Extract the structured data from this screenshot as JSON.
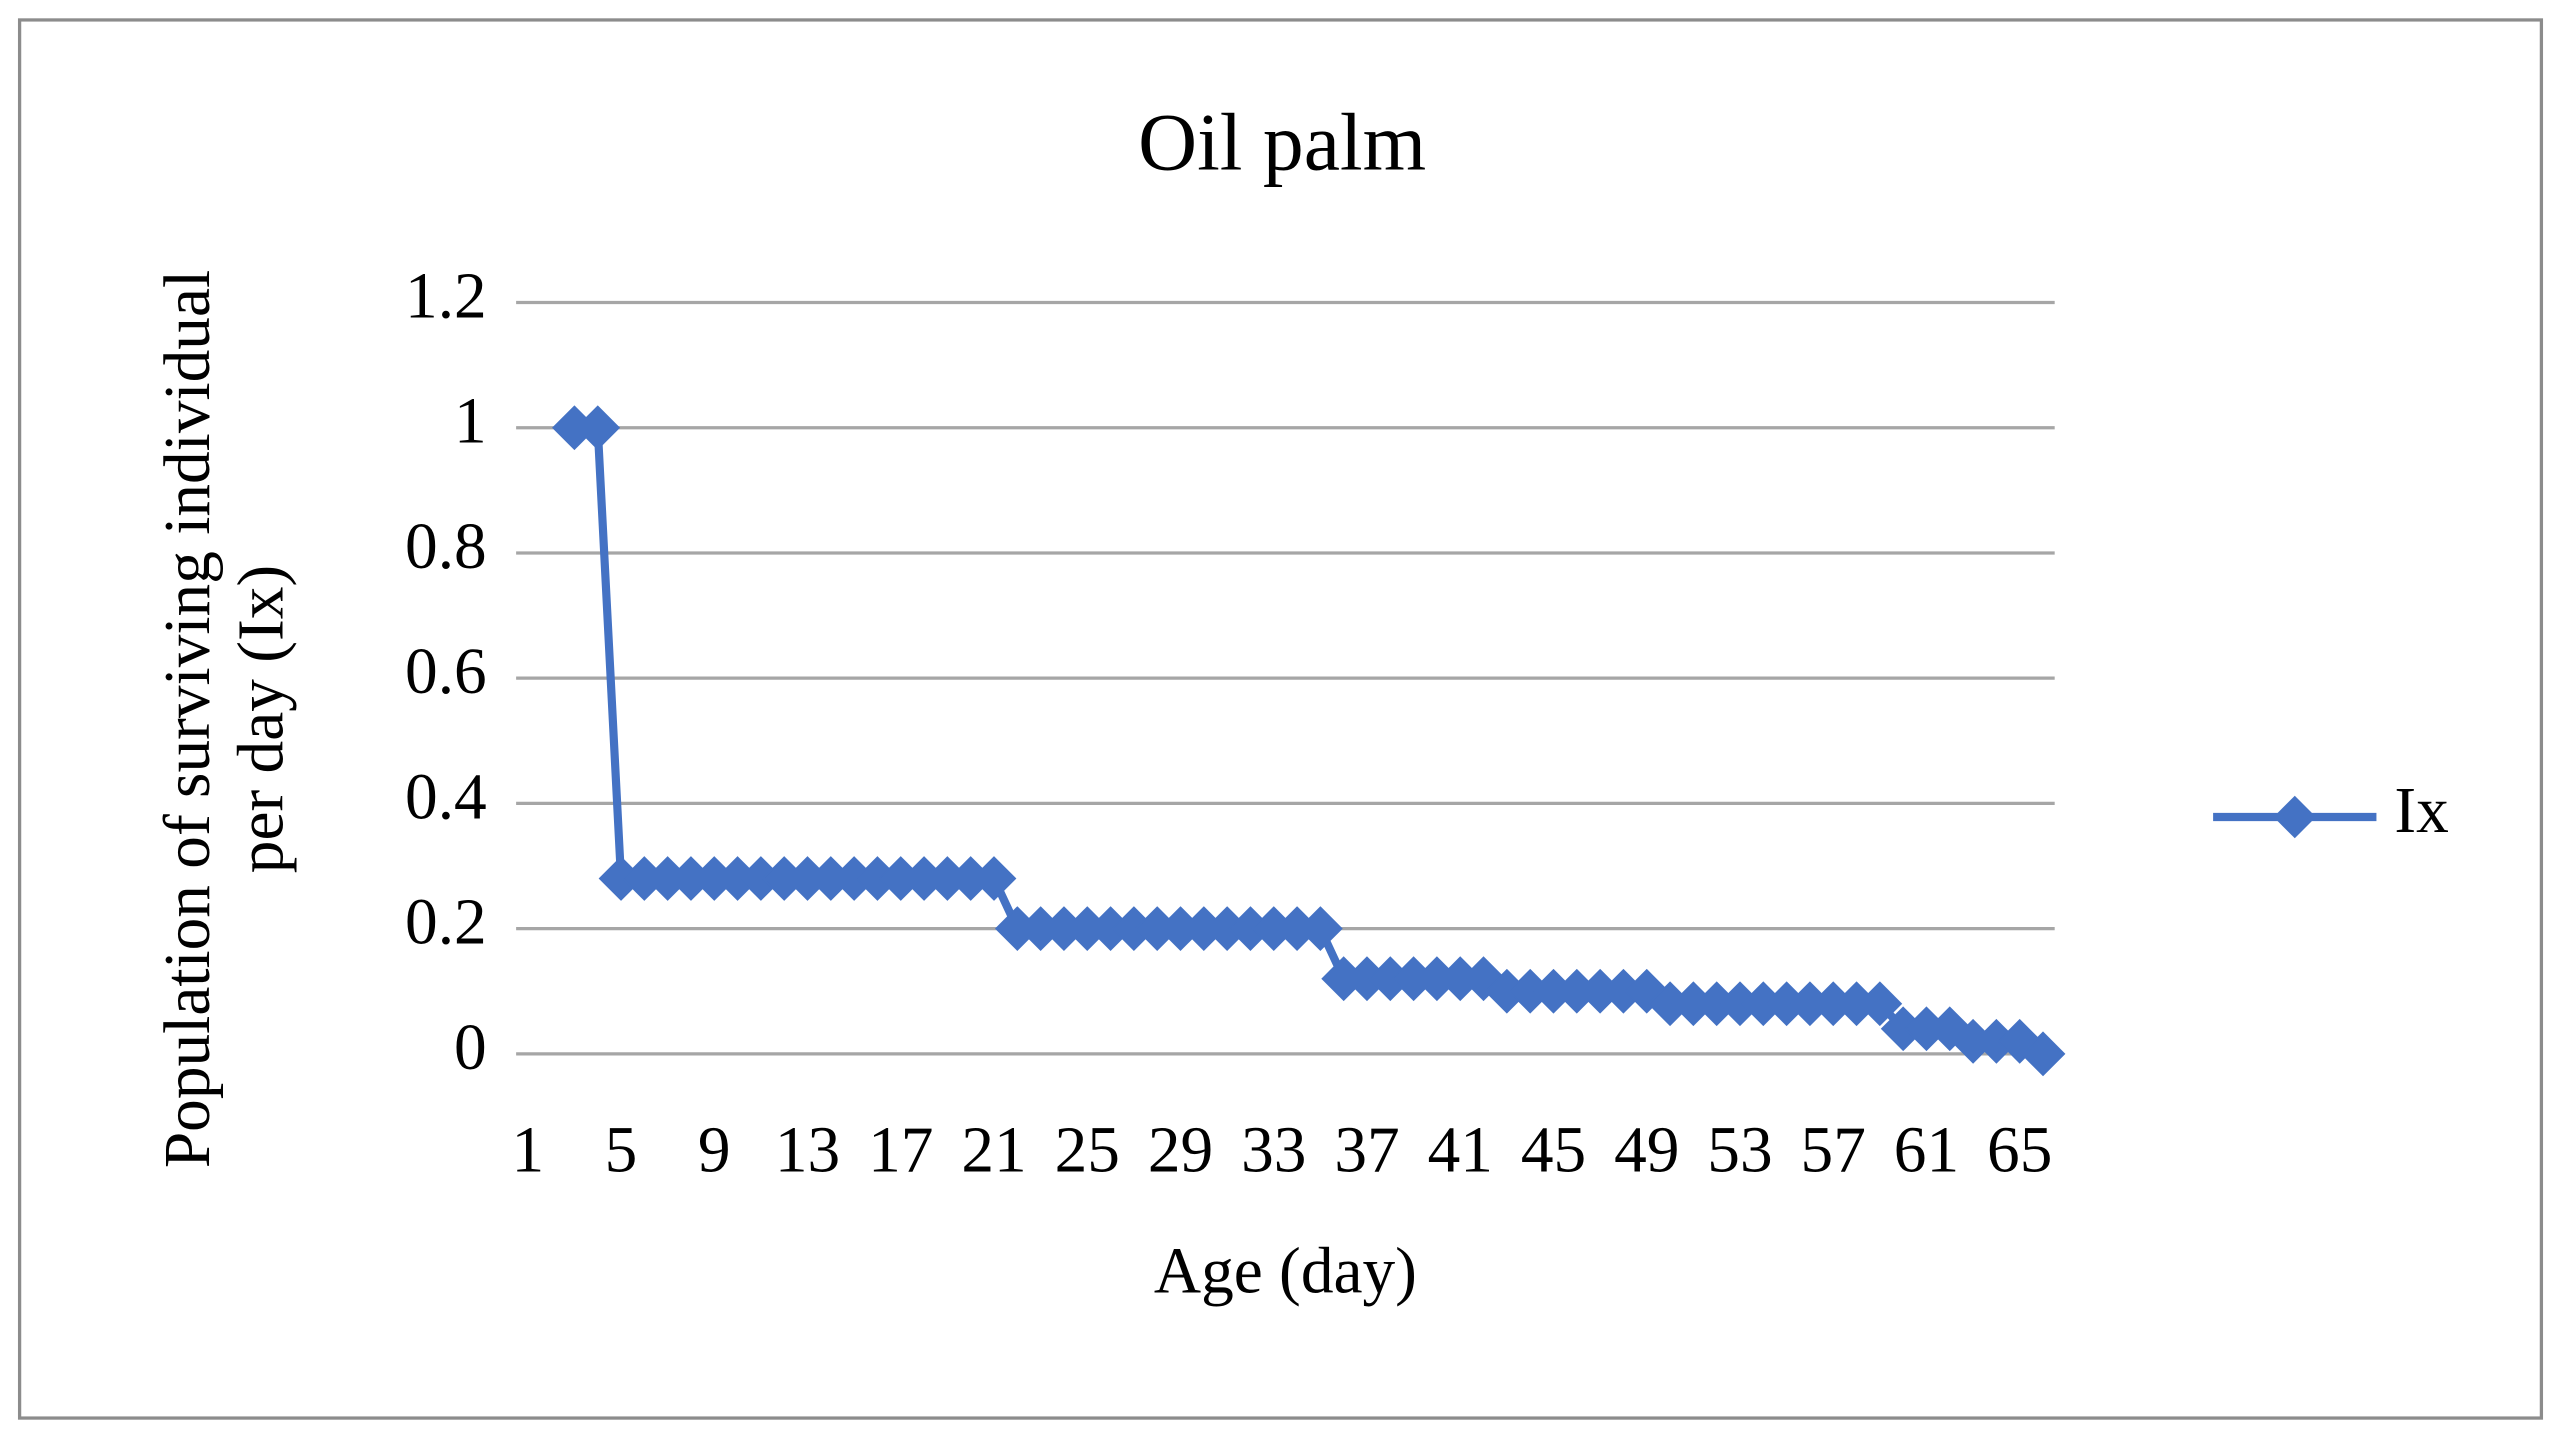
{
  "chart_data": {
    "type": "line",
    "title": "Oil palm",
    "x_label": "Age (day)",
    "y_label": "Population of surviving individual per day (Ix)",
    "categories": [
      "1",
      null,
      null,
      null,
      "5",
      null,
      null,
      null,
      "9",
      null,
      null,
      null,
      "13",
      null,
      null,
      null,
      "17",
      null,
      null,
      null,
      "21",
      null,
      null,
      null,
      "25",
      null,
      null,
      null,
      "29",
      null,
      null,
      null,
      "33",
      null,
      null,
      null,
      "37",
      null,
      null,
      null,
      "41",
      null,
      null,
      null,
      "45",
      null,
      null,
      null,
      "49",
      null,
      null,
      null,
      "53",
      null,
      null,
      null,
      "57",
      null,
      null,
      null,
      "61",
      null,
      null,
      null,
      "65",
      null
    ],
    "series": [
      {
        "name": "Ix",
        "color": "#4472c4",
        "values": [
          null,
          null,
          1,
          1,
          0.28,
          0.28,
          0.28,
          0.28,
          0.28,
          0.28,
          0.28,
          0.28,
          0.28,
          0.28,
          0.28,
          0.28,
          0.28,
          0.28,
          0.28,
          0.28,
          0.28,
          0.2,
          0.2,
          0.2,
          0.2,
          0.2,
          0.2,
          0.2,
          0.2,
          0.2,
          0.2,
          0.2,
          0.2,
          0.2,
          0.2,
          0.12,
          0.12,
          0.12,
          0.12,
          0.12,
          0.12,
          0.12,
          0.1,
          0.1,
          0.1,
          0.1,
          0.1,
          0.1,
          0.1,
          0.08,
          0.08,
          0.08,
          0.08,
          0.08,
          0.08,
          0.08,
          0.08,
          0.08,
          0.08,
          0.04,
          0.04,
          0.04,
          0.02,
          0.02,
          0.02,
          0
        ]
      }
    ],
    "ylim": [
      0,
      1.2
    ],
    "yticks": [
      0,
      {
        "value": 0.2,
        "label": "0.2"
      },
      {
        "value": 0.4,
        "label": "0.4"
      },
      {
        "value": 0.6,
        "label": "0.6"
      },
      {
        "value": 0.8,
        "label": "0.8"
      },
      1,
      {
        "value": 1.2,
        "label": "1.2"
      }
    ],
    "grid": true,
    "legend": "right"
  }
}
